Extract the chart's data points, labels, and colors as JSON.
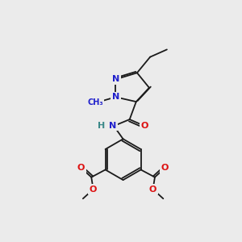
{
  "bg_color": "#ebebeb",
  "bond_color": "#1a1a1a",
  "bond_width": 1.3,
  "atom_colors": {
    "N": "#2020cc",
    "O": "#dd1111",
    "H": "#3a8888"
  },
  "fs": 7.5
}
